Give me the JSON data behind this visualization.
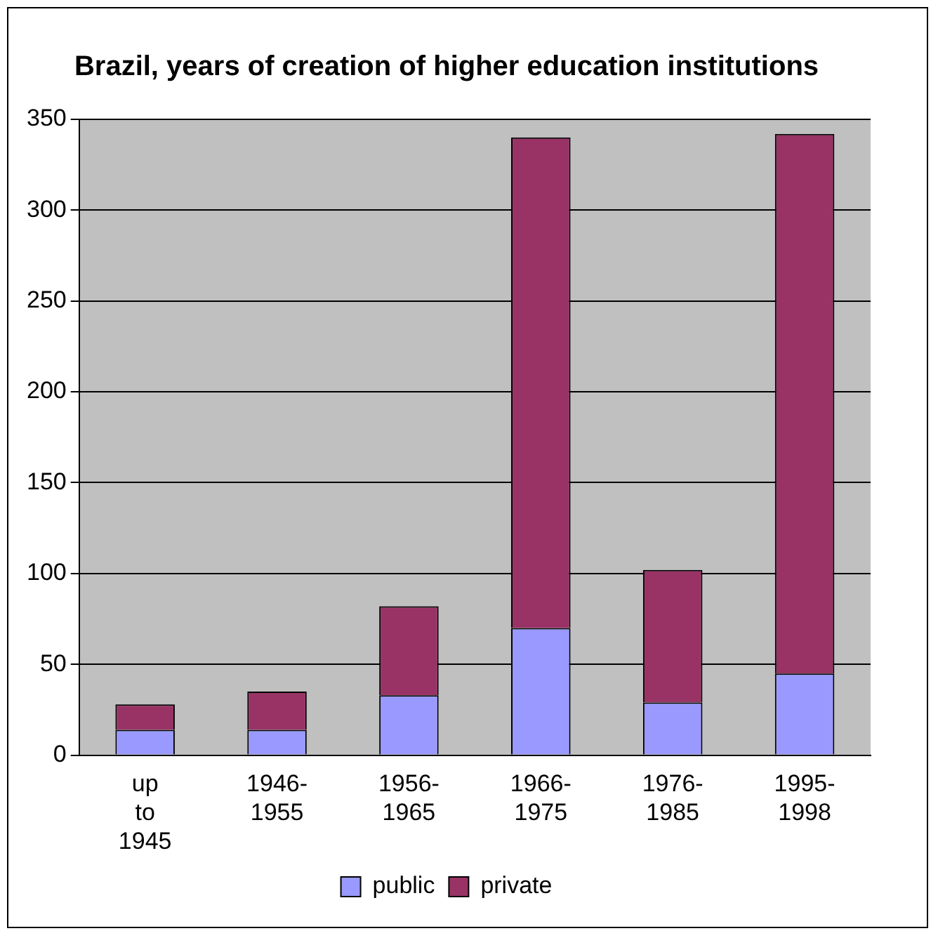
{
  "chart_data": {
    "type": "bar",
    "title": "Brazil, years of creation of higher education institutions",
    "categories": [
      "up to 1945",
      "1946-1955",
      "1956-1965",
      "1966-1975",
      "1976-1985",
      "1995-1998"
    ],
    "stacked": true,
    "series": [
      {
        "name": "public",
        "color": "#9999ff",
        "values": [
          14,
          14,
          33,
          70,
          29,
          45
        ]
      },
      {
        "name": "private",
        "color": "#993366",
        "values": [
          14,
          21,
          49,
          270,
          73,
          297
        ]
      }
    ],
    "ylim": [
      0,
      350
    ],
    "yticks": [
      0,
      50,
      100,
      150,
      200,
      250,
      300,
      350
    ],
    "grid": "y",
    "legend": "bottom"
  }
}
